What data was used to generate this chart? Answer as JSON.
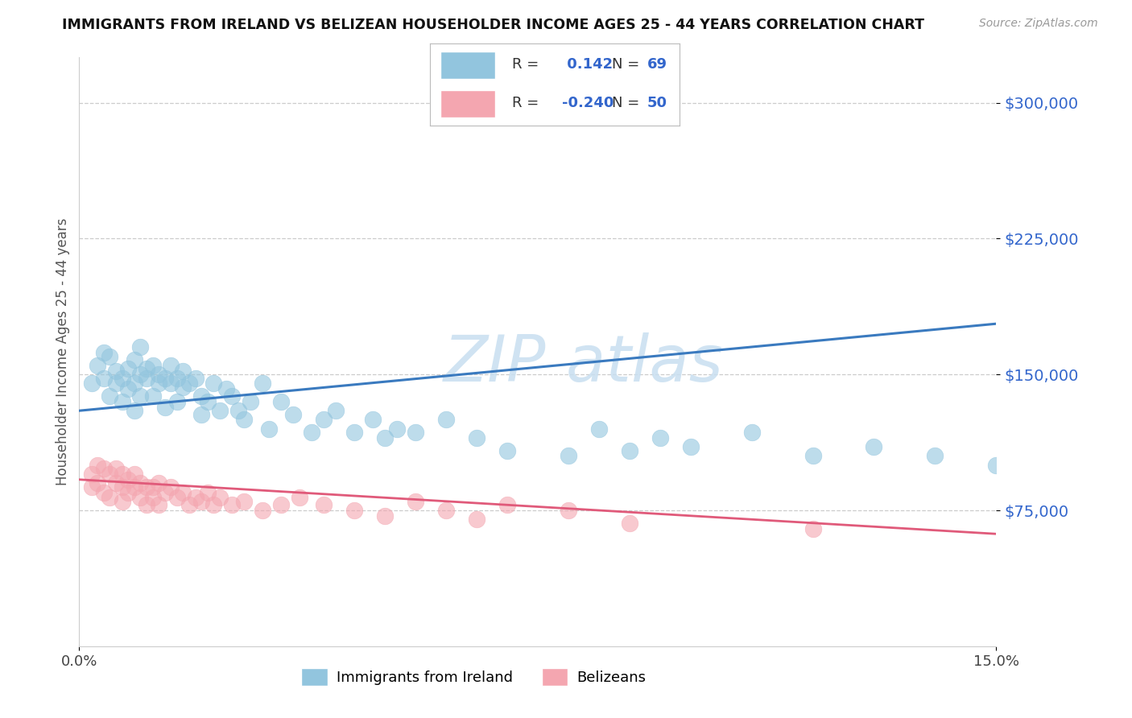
{
  "title": "IMMIGRANTS FROM IRELAND VS BELIZEAN HOUSEHOLDER INCOME AGES 25 - 44 YEARS CORRELATION CHART",
  "source": "Source: ZipAtlas.com",
  "ylabel": "Householder Income Ages 25 - 44 years",
  "xlim": [
    0.0,
    0.15
  ],
  "ylim": [
    0,
    325000
  ],
  "yticks": [
    75000,
    150000,
    225000,
    300000
  ],
  "ytick_labels": [
    "$75,000",
    "$150,000",
    "$225,000",
    "$300,000"
  ],
  "xticks": [
    0.0,
    0.15
  ],
  "xtick_labels": [
    "0.0%",
    "15.0%"
  ],
  "blue_R": 0.142,
  "blue_N": 69,
  "pink_R": -0.24,
  "pink_N": 50,
  "blue_color": "#92c5de",
  "pink_color": "#f4a6b0",
  "blue_line_color": "#3a7abf",
  "pink_line_color": "#e05a7a",
  "title_color": "#111111",
  "ytick_color": "#3366cc",
  "watermark_color": "#c8dff0",
  "blue_line_y0": 130000,
  "blue_line_y1": 178000,
  "pink_line_y0": 92000,
  "pink_line_y1": 62000,
  "blue_scatter_x": [
    0.002,
    0.003,
    0.004,
    0.004,
    0.005,
    0.005,
    0.006,
    0.006,
    0.007,
    0.007,
    0.008,
    0.008,
    0.009,
    0.009,
    0.009,
    0.01,
    0.01,
    0.01,
    0.011,
    0.011,
    0.012,
    0.012,
    0.013,
    0.013,
    0.014,
    0.014,
    0.015,
    0.015,
    0.016,
    0.016,
    0.017,
    0.017,
    0.018,
    0.019,
    0.02,
    0.02,
    0.021,
    0.022,
    0.023,
    0.024,
    0.025,
    0.026,
    0.027,
    0.028,
    0.03,
    0.031,
    0.033,
    0.035,
    0.038,
    0.04,
    0.042,
    0.045,
    0.048,
    0.05,
    0.052,
    0.055,
    0.06,
    0.065,
    0.07,
    0.08,
    0.085,
    0.09,
    0.095,
    0.1,
    0.11,
    0.12,
    0.13,
    0.14,
    0.15
  ],
  "blue_scatter_y": [
    145000,
    155000,
    148000,
    162000,
    160000,
    138000,
    152000,
    145000,
    148000,
    135000,
    153000,
    142000,
    158000,
    145000,
    130000,
    150000,
    165000,
    138000,
    148000,
    153000,
    155000,
    138000,
    150000,
    145000,
    148000,
    132000,
    155000,
    145000,
    148000,
    135000,
    143000,
    152000,
    145000,
    148000,
    138000,
    128000,
    135000,
    145000,
    130000,
    142000,
    138000,
    130000,
    125000,
    135000,
    145000,
    120000,
    135000,
    128000,
    118000,
    125000,
    130000,
    118000,
    125000,
    115000,
    120000,
    118000,
    125000,
    115000,
    108000,
    105000,
    120000,
    108000,
    115000,
    110000,
    118000,
    105000,
    110000,
    105000,
    100000
  ],
  "pink_scatter_x": [
    0.002,
    0.002,
    0.003,
    0.003,
    0.004,
    0.004,
    0.005,
    0.005,
    0.006,
    0.006,
    0.007,
    0.007,
    0.007,
    0.008,
    0.008,
    0.009,
    0.009,
    0.01,
    0.01,
    0.011,
    0.011,
    0.012,
    0.012,
    0.013,
    0.013,
    0.014,
    0.015,
    0.016,
    0.017,
    0.018,
    0.019,
    0.02,
    0.021,
    0.022,
    0.023,
    0.025,
    0.027,
    0.03,
    0.033,
    0.036,
    0.04,
    0.045,
    0.05,
    0.055,
    0.06,
    0.065,
    0.07,
    0.08,
    0.09,
    0.12
  ],
  "pink_scatter_y": [
    95000,
    88000,
    100000,
    90000,
    98000,
    85000,
    95000,
    82000,
    90000,
    98000,
    88000,
    80000,
    95000,
    85000,
    92000,
    88000,
    95000,
    82000,
    90000,
    88000,
    78000,
    88000,
    82000,
    90000,
    78000,
    85000,
    88000,
    82000,
    85000,
    78000,
    82000,
    80000,
    85000,
    78000,
    82000,
    78000,
    80000,
    75000,
    78000,
    82000,
    78000,
    75000,
    72000,
    80000,
    75000,
    70000,
    78000,
    75000,
    68000,
    65000
  ]
}
